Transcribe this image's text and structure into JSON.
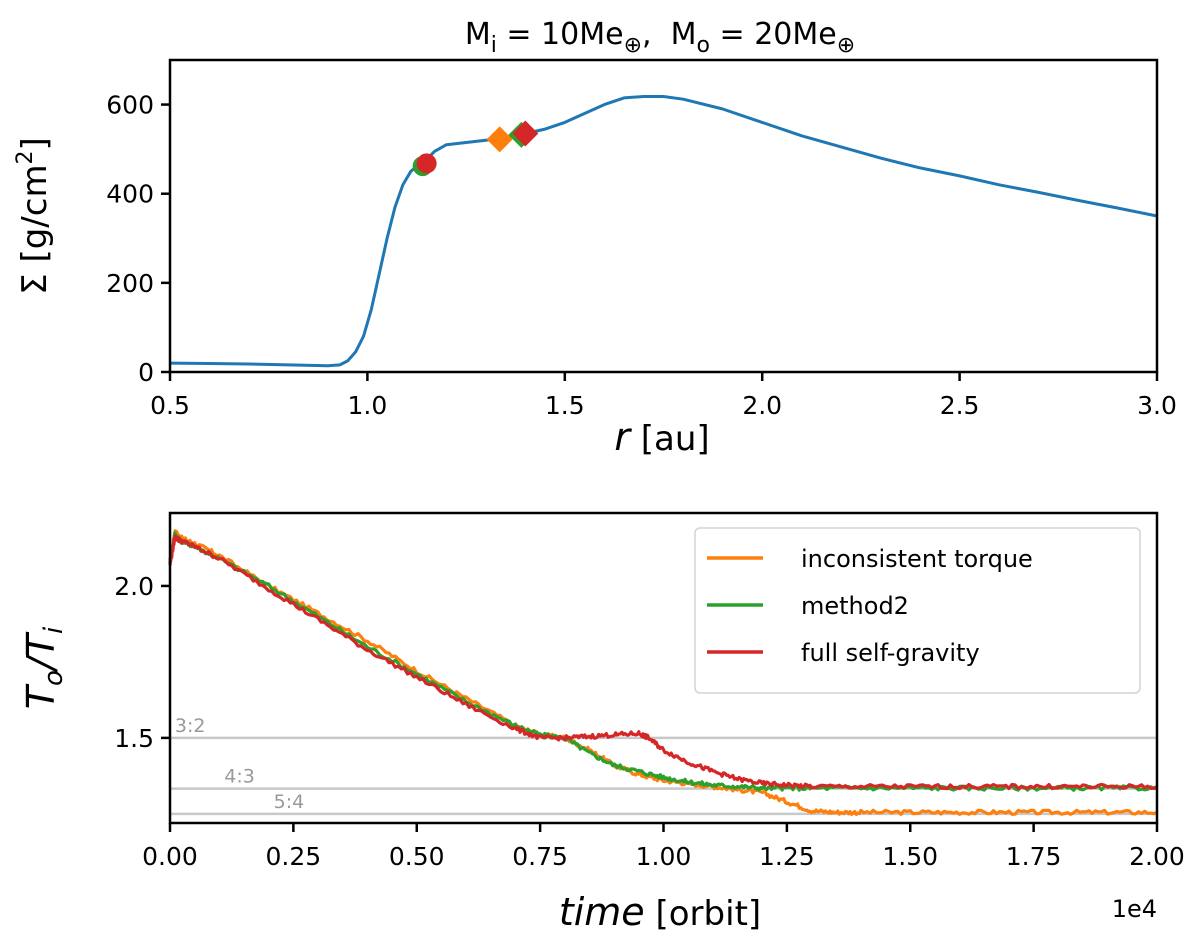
{
  "chart_data": [
    {
      "type": "line",
      "panel": "top",
      "title": "M_i = 10Me⊕,  M_o = 20Me⊕",
      "title_parts": {
        "m1": "M",
        "s1": "i",
        "eq1": " = 10Me",
        "sym1": "⊕",
        "sep": ",  ",
        "m2": "M",
        "s2": "o",
        "eq2": " = 20Me",
        "sym2": "⊕"
      },
      "xlabel": "r [au]",
      "xlabel_parts": {
        "var": "r",
        "unit": " [au]"
      },
      "ylabel": "Σ [g/cm2]",
      "ylabel_parts": {
        "main": "Σ [g/cm",
        "sup": "2",
        "close": "]"
      },
      "xlim": [
        0.5,
        3.0
      ],
      "ylim": [
        0,
        700
      ],
      "xticks": [
        0.5,
        1.0,
        1.5,
        2.0,
        2.5,
        3.0
      ],
      "xtick_labels": [
        "0.5",
        "1.0",
        "1.5",
        "2.0",
        "2.5",
        "3.0"
      ],
      "yticks": [
        0,
        200,
        400,
        600
      ],
      "ytick_labels": [
        "0",
        "200",
        "400",
        "600"
      ],
      "series": [
        {
          "name": "surface density",
          "color": "#1f77b4",
          "x": [
            0.5,
            0.6,
            0.7,
            0.8,
            0.9,
            0.93,
            0.95,
            0.97,
            0.99,
            1.01,
            1.03,
            1.05,
            1.07,
            1.09,
            1.11,
            1.13,
            1.15,
            1.17,
            1.2,
            1.25,
            1.3,
            1.35,
            1.4,
            1.45,
            1.5,
            1.55,
            1.6,
            1.65,
            1.7,
            1.75,
            1.8,
            1.9,
            2.0,
            2.1,
            2.2,
            2.3,
            2.4,
            2.5,
            2.6,
            2.7,
            2.8,
            2.9,
            3.0
          ],
          "y": [
            20,
            19,
            18,
            16,
            14,
            16,
            25,
            45,
            80,
            140,
            220,
            300,
            370,
            420,
            450,
            465,
            477,
            495,
            510,
            515,
            520,
            525,
            535,
            545,
            560,
            580,
            600,
            615,
            618,
            618,
            612,
            590,
            560,
            530,
            505,
            480,
            458,
            440,
            420,
            403,
            385,
            368,
            350
          ]
        }
      ],
      "markers": [
        {
          "shape": "circle",
          "color": "#2ca02c",
          "x": 1.14,
          "y": 462
        },
        {
          "shape": "circle",
          "color": "#d62728",
          "x": 1.15,
          "y": 468
        },
        {
          "shape": "diamond",
          "color": "#ff7f0e",
          "x": 1.335,
          "y": 522
        },
        {
          "shape": "diamond",
          "color": "#2ca02c",
          "x": 1.39,
          "y": 532
        },
        {
          "shape": "diamond",
          "color": "#d62728",
          "x": 1.4,
          "y": 535
        }
      ]
    },
    {
      "type": "line",
      "panel": "bottom",
      "xlabel": "time [orbit]",
      "xlabel_parts": {
        "var": "time",
        "unit": " [orbit]"
      },
      "ylabel": "T_o/T_i",
      "ylabel_parts": {
        "t1": "T",
        "s1": "o",
        "slash": "/",
        "t2": "T",
        "s2": "i"
      },
      "x_offset_text": "1e4",
      "xlim": [
        0.0,
        2.0
      ],
      "ylim": [
        1.22,
        2.24
      ],
      "xticks": [
        0.0,
        0.25,
        0.5,
        0.75,
        1.0,
        1.25,
        1.5,
        1.75,
        2.0
      ],
      "xtick_labels": [
        "0.00",
        "0.25",
        "0.50",
        "0.75",
        "1.00",
        "1.25",
        "1.50",
        "1.75",
        "2.00"
      ],
      "yticks": [
        1.5,
        2.0
      ],
      "ytick_labels": [
        "1.5",
        "2.0"
      ],
      "reference_lines": [
        {
          "label": "3:2",
          "y": 1.5,
          "label_x": 0.01
        },
        {
          "label": "4:3",
          "y": 1.333,
          "label_x": 0.11
        },
        {
          "label": "5:4",
          "y": 1.25,
          "label_x": 0.21
        }
      ],
      "legend_position": "top-right",
      "series": [
        {
          "name": "inconsistent torque",
          "color": "#ff7f0e",
          "x": [
            0.0,
            0.01,
            0.02,
            0.05,
            0.1,
            0.2,
            0.3,
            0.4,
            0.5,
            0.6,
            0.7,
            0.75,
            0.8,
            0.85,
            0.9,
            0.95,
            1.0,
            1.05,
            1.1,
            1.15,
            1.2,
            1.25,
            1.3,
            1.35,
            1.4,
            1.5,
            1.6,
            1.7,
            1.8,
            1.9,
            2.0
          ],
          "y": [
            2.08,
            2.18,
            2.16,
            2.14,
            2.1,
            2.0,
            1.91,
            1.82,
            1.72,
            1.63,
            1.54,
            1.51,
            1.5,
            1.46,
            1.41,
            1.38,
            1.36,
            1.35,
            1.34,
            1.33,
            1.32,
            1.29,
            1.26,
            1.255,
            1.255,
            1.255,
            1.255,
            1.255,
            1.255,
            1.255,
            1.255
          ]
        },
        {
          "name": "method2",
          "color": "#2ca02c",
          "x": [
            0.0,
            0.01,
            0.02,
            0.05,
            0.1,
            0.2,
            0.3,
            0.4,
            0.5,
            0.6,
            0.7,
            0.75,
            0.8,
            0.85,
            0.9,
            0.95,
            1.0,
            1.05,
            1.1,
            1.15,
            1.2,
            1.25,
            1.3,
            1.4,
            1.5,
            1.6,
            1.7,
            1.8,
            1.9,
            2.0
          ],
          "y": [
            2.08,
            2.17,
            2.15,
            2.13,
            2.09,
            2.0,
            1.9,
            1.8,
            1.71,
            1.62,
            1.54,
            1.51,
            1.5,
            1.45,
            1.41,
            1.39,
            1.37,
            1.355,
            1.345,
            1.34,
            1.335,
            1.335,
            1.335,
            1.335,
            1.335,
            1.335,
            1.335,
            1.335,
            1.335,
            1.335
          ]
        },
        {
          "name": "full self-gravity",
          "color": "#d62728",
          "x": [
            0.0,
            0.01,
            0.02,
            0.05,
            0.1,
            0.2,
            0.3,
            0.4,
            0.5,
            0.6,
            0.7,
            0.75,
            0.8,
            0.85,
            0.9,
            0.95,
            0.97,
            1.0,
            1.05,
            1.1,
            1.15,
            1.2,
            1.25,
            1.3,
            1.4,
            1.5,
            1.6,
            1.7,
            1.8,
            1.9,
            2.0
          ],
          "y": [
            2.07,
            2.16,
            2.15,
            2.13,
            2.09,
            1.99,
            1.89,
            1.79,
            1.7,
            1.61,
            1.53,
            1.5,
            1.5,
            1.505,
            1.51,
            1.515,
            1.5,
            1.46,
            1.42,
            1.39,
            1.365,
            1.35,
            1.345,
            1.34,
            1.34,
            1.34,
            1.34,
            1.34,
            1.34,
            1.34,
            1.34
          ]
        }
      ]
    }
  ]
}
